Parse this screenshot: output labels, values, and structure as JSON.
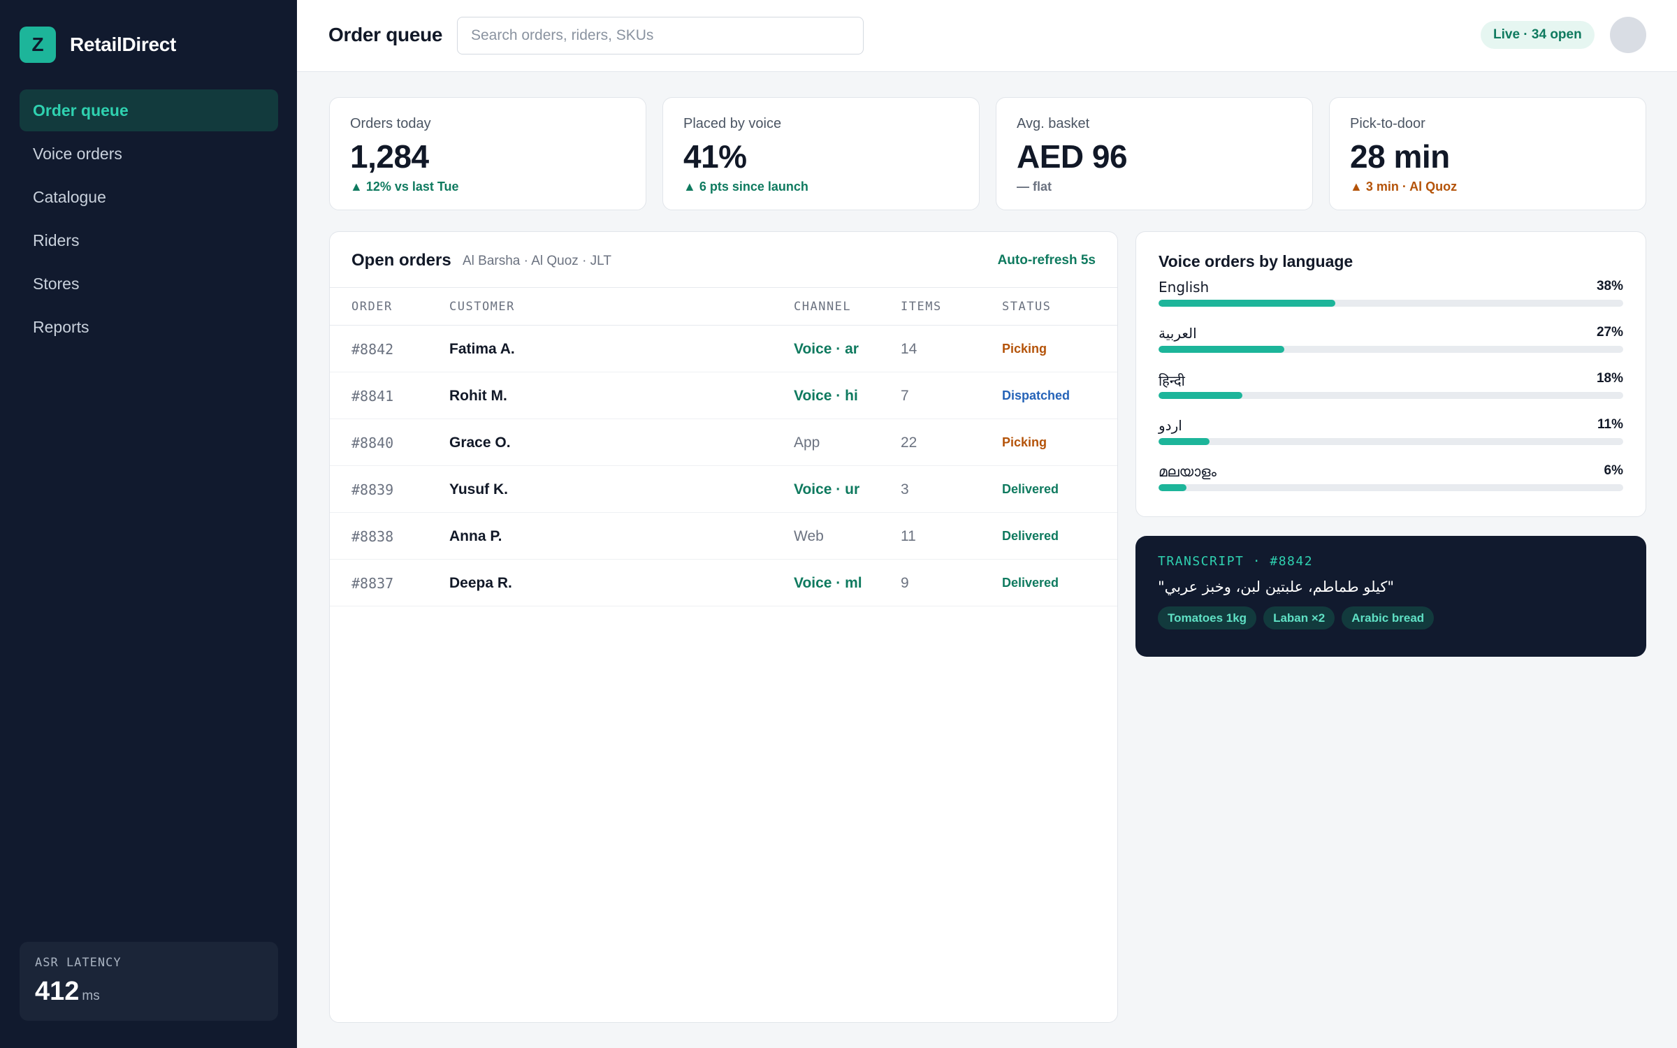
{
  "brand": {
    "logo_letter": "Z",
    "name": "RetailDirect"
  },
  "sidebar": {
    "items": [
      {
        "label": "Order queue",
        "active": true
      },
      {
        "label": "Voice orders",
        "active": false
      },
      {
        "label": "Catalogue",
        "active": false
      },
      {
        "label": "Riders",
        "active": false
      },
      {
        "label": "Stores",
        "active": false
      },
      {
        "label": "Reports",
        "active": false
      }
    ],
    "latency": {
      "label": "ASR LATENCY",
      "value": "412",
      "unit": "ms"
    }
  },
  "header": {
    "title": "Order queue",
    "search_placeholder": "Search orders, riders, SKUs",
    "live_label": "Live · 34 open"
  },
  "kpis": [
    {
      "label": "Orders today",
      "value": "1,284",
      "delta": "▲ 12% vs last Tue",
      "tone": "up"
    },
    {
      "label": "Placed by voice",
      "value": "41%",
      "delta": "▲ 6 pts since launch",
      "tone": "up"
    },
    {
      "label": "Avg. basket",
      "value": "AED 96",
      "delta": "— flat",
      "tone": "flat"
    },
    {
      "label": "Pick-to-door",
      "value": "28 min",
      "delta": "▲ 3 min · Al Quoz",
      "tone": "warn"
    }
  ],
  "orders": {
    "title": "Open orders",
    "subtitle": "Al Barsha · Al Quoz · JLT",
    "refresh": "Auto-refresh 5s",
    "columns": [
      "ORDER",
      "CUSTOMER",
      "CHANNEL",
      "ITEMS",
      "STATUS"
    ],
    "rows": [
      {
        "order": "#8842",
        "customer": "Fatima A.",
        "channel": "Voice · ar",
        "voice": true,
        "items": "14",
        "status": "Picking"
      },
      {
        "order": "#8841",
        "customer": "Rohit M.",
        "channel": "Voice · hi",
        "voice": true,
        "items": "7",
        "status": "Dispatched"
      },
      {
        "order": "#8840",
        "customer": "Grace O.",
        "channel": "App",
        "voice": false,
        "items": "22",
        "status": "Picking"
      },
      {
        "order": "#8839",
        "customer": "Yusuf K.",
        "channel": "Voice · ur",
        "voice": true,
        "items": "3",
        "status": "Delivered"
      },
      {
        "order": "#8838",
        "customer": "Anna P.",
        "channel": "Web",
        "voice": false,
        "items": "11",
        "status": "Delivered"
      },
      {
        "order": "#8837",
        "customer": "Deepa R.",
        "channel": "Voice · ml",
        "voice": true,
        "items": "9",
        "status": "Delivered"
      }
    ]
  },
  "languages": {
    "title": "Voice orders by language",
    "items": [
      {
        "name": "English",
        "pct_label": "38%",
        "value": 38
      },
      {
        "name": "العربية",
        "pct_label": "27%",
        "value": 27
      },
      {
        "name": "हिन्दी",
        "pct_label": "18%",
        "value": 18
      },
      {
        "name": "اردو",
        "pct_label": "11%",
        "value": 11
      },
      {
        "name": "മലയാളം",
        "pct_label": "6%",
        "value": 6
      }
    ]
  },
  "transcript": {
    "label": "TRANSCRIPT · #8842",
    "text": "\"كيلو طماطم، علبتين لبن، وخبز عربي\"",
    "tags": [
      "Tomatoes 1kg",
      "Laban ×2",
      "Arabic bread"
    ]
  },
  "colors": {
    "accent": "#1db59a",
    "sidebar_bg": "#111a2e",
    "picking": "#b45309",
    "dispatched": "#2563b8",
    "delivered": "#0f7a5f"
  }
}
